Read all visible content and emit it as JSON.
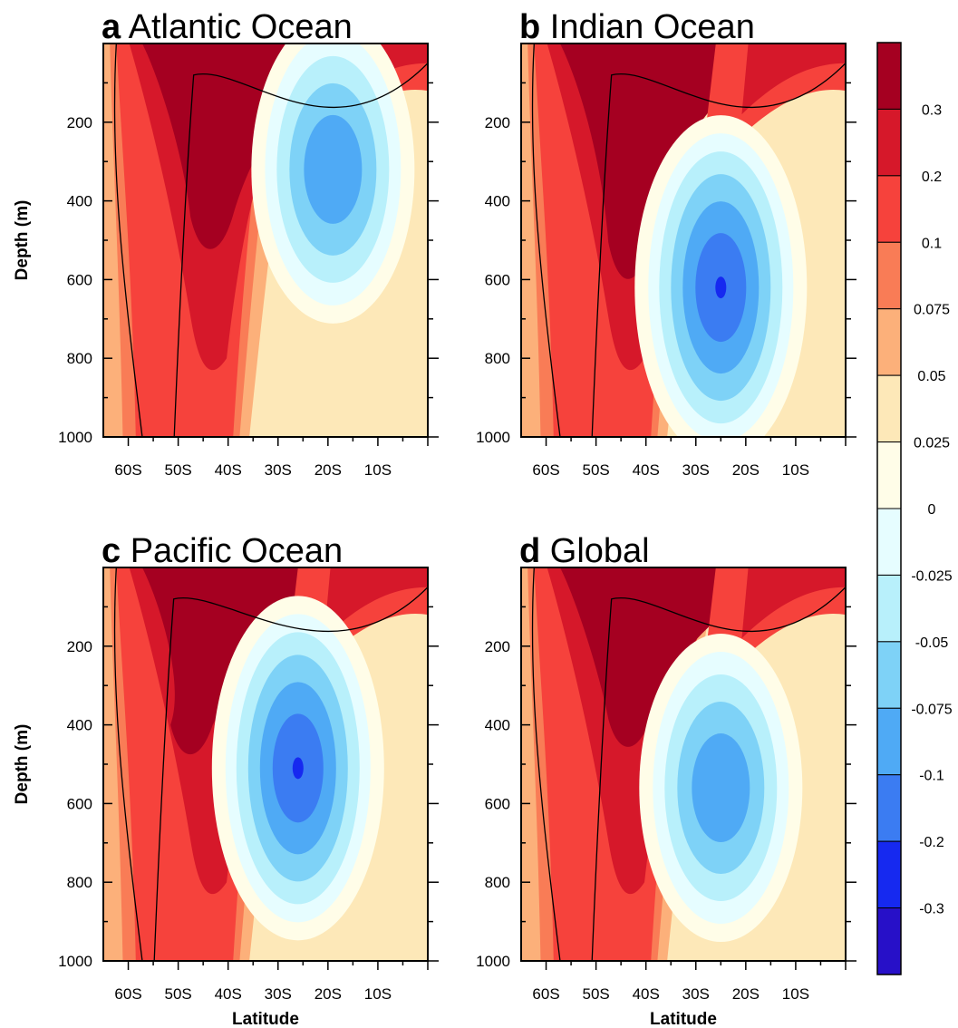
{
  "chart_data": {
    "type": "contour",
    "colorbar": {
      "levels": [
        "0.3",
        "0.2",
        "0.1",
        "0.075",
        "0.05",
        "0.025",
        "0",
        "-0.025",
        "-0.05",
        "-0.075",
        "-0.1",
        "-0.2",
        "-0.3"
      ],
      "colors": [
        "#a50021",
        "#d6182a",
        "#f6423c",
        "#f97c56",
        "#fcb07a",
        "#fde8b8",
        "#fffde8",
        "#e6fdff",
        "#b8f0fb",
        "#7ed2f7",
        "#4faaf5",
        "#3b7cf2",
        "#1629f0",
        "#2710c8"
      ]
    },
    "y_axis": {
      "label": "Depth (m)",
      "ticks": [
        "200",
        "400",
        "600",
        "800",
        "1000"
      ],
      "range": [
        0,
        1000
      ],
      "inverted": true
    },
    "x_axis": {
      "label": "Latitude",
      "ticks": [
        "60S",
        "50S",
        "40S",
        "30S",
        "20S",
        "10S"
      ],
      "range_deg": [
        -65,
        0
      ]
    },
    "panels": [
      {
        "letter": "a",
        "title": "Atlantic Ocean",
        "max_core_lat": -43,
        "max_core_depth_bottom": 550,
        "min_center": [
          -19,
          320
        ],
        "min_value": -0.1
      },
      {
        "letter": "b",
        "title": "Indian Ocean",
        "max_core_lat": -43,
        "max_core_depth_bottom": 630,
        "min_center": [
          -25,
          620
        ],
        "min_value": -0.2
      },
      {
        "letter": "c",
        "title": "Pacific Ocean",
        "max_core_lat": -47,
        "max_core_depth_bottom": 500,
        "min_center": [
          -26,
          510
        ],
        "min_value": -0.2
      },
      {
        "letter": "d",
        "title": "Global",
        "max_core_lat": -43,
        "max_core_depth_bottom": 480,
        "min_center": [
          -25,
          560
        ],
        "min_value": -0.1
      }
    ]
  }
}
